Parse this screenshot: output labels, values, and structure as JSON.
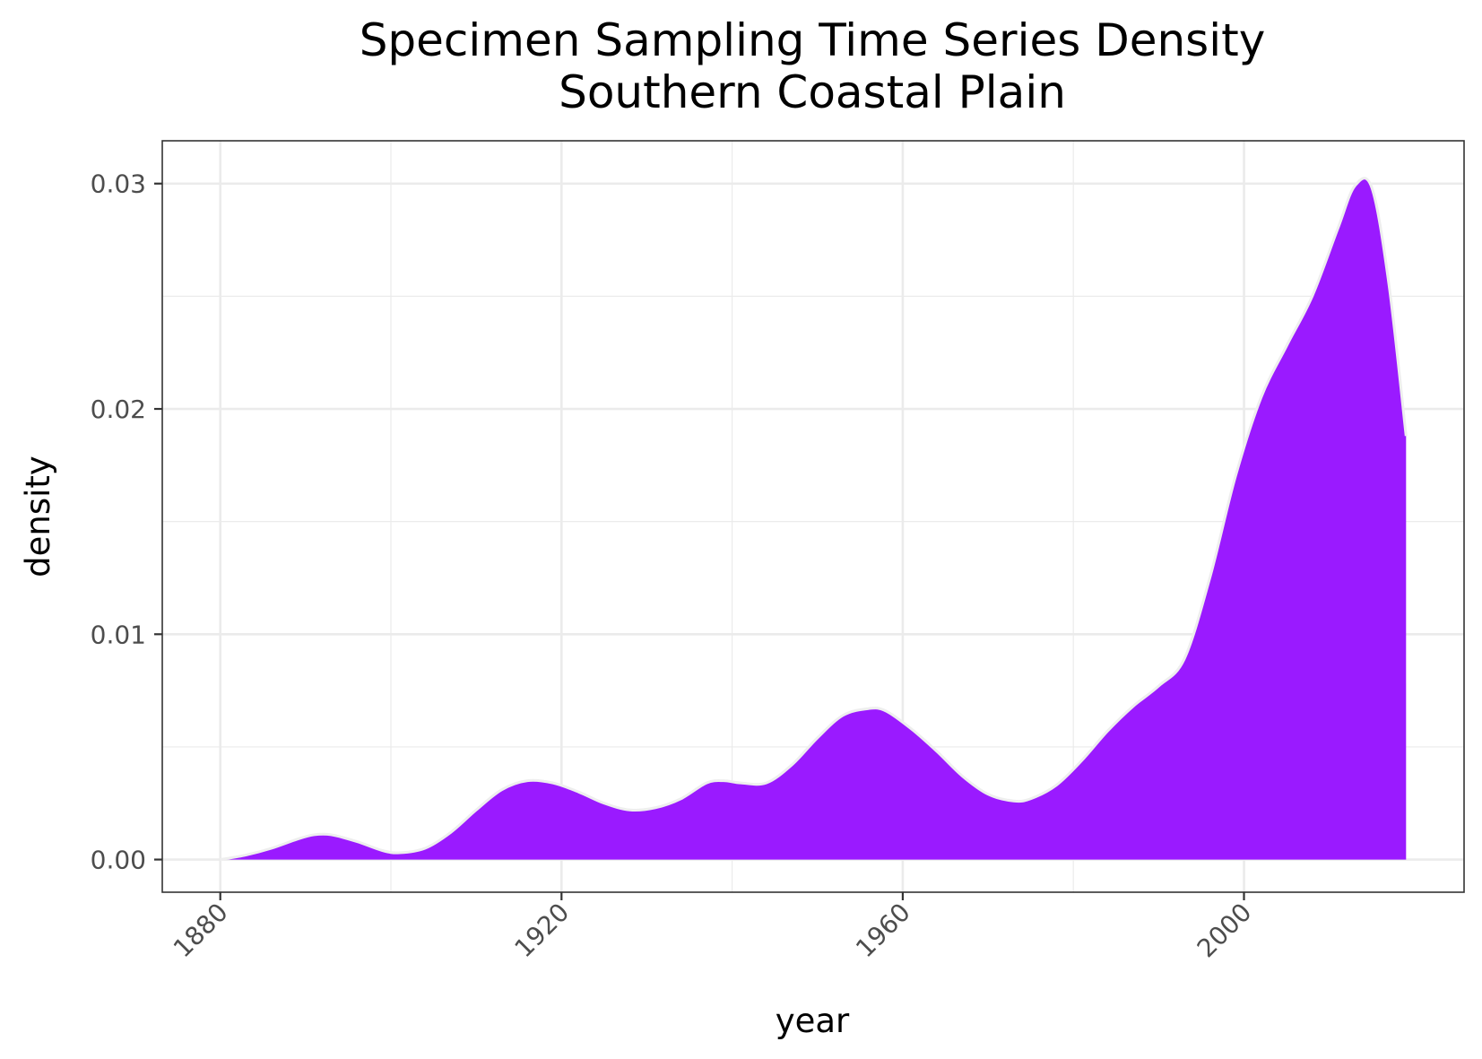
{
  "chart_data": {
    "type": "area",
    "title": "Specimen Sampling Time Series Density",
    "subtitle": "Southern Coastal Plain",
    "xlabel": "year",
    "ylabel": "density",
    "xlim": [
      1873.2,
      2025.8
    ],
    "ylim": [
      -0.00145,
      0.0319
    ],
    "x_ticks": [
      1880,
      1920,
      1960,
      2000
    ],
    "x_tick_labels": [
      "1880",
      "1920",
      "1960",
      "2000"
    ],
    "y_ticks": [
      0.0,
      0.01,
      0.02,
      0.03
    ],
    "y_tick_labels": [
      "0.00",
      "0.01",
      "0.02",
      "0.03"
    ],
    "grid": true,
    "legend": "none",
    "fill_color": "#9a1aff",
    "outline_color": "#eeeeee",
    "series": [
      {
        "x": [
          1880,
          1883,
          1886,
          1889,
          1891,
          1893,
          1896,
          1899,
          1901,
          1904,
          1907,
          1910,
          1913,
          1916,
          1919,
          1922,
          1925,
          1928,
          1931,
          1934,
          1937,
          1939,
          1941,
          1944,
          1947,
          1950,
          1953,
          1956,
          1958,
          1961,
          1964,
          1967,
          1970,
          1973,
          1975,
          1978,
          1981,
          1984,
          1987,
          1990,
          1993,
          1996,
          1999,
          2002,
          2005,
          2008,
          2011,
          2013,
          2015,
          2017,
          2019
        ],
        "y": [
          0.0,
          0.0002,
          0.0005,
          0.0009,
          0.0011,
          0.0011,
          0.0008,
          0.0004,
          0.0003,
          0.0005,
          0.0012,
          0.0022,
          0.0031,
          0.0035,
          0.0034,
          0.003,
          0.0025,
          0.0022,
          0.0023,
          0.0027,
          0.0034,
          0.0035,
          0.0034,
          0.0034,
          0.0042,
          0.0054,
          0.0064,
          0.0067,
          0.0066,
          0.0058,
          0.0048,
          0.0037,
          0.0029,
          0.0026,
          0.0027,
          0.0033,
          0.0044,
          0.0057,
          0.0068,
          0.0077,
          0.0089,
          0.0125,
          0.017,
          0.0205,
          0.0228,
          0.025,
          0.028,
          0.0299,
          0.0298,
          0.0255,
          0.0188
        ]
      }
    ]
  }
}
